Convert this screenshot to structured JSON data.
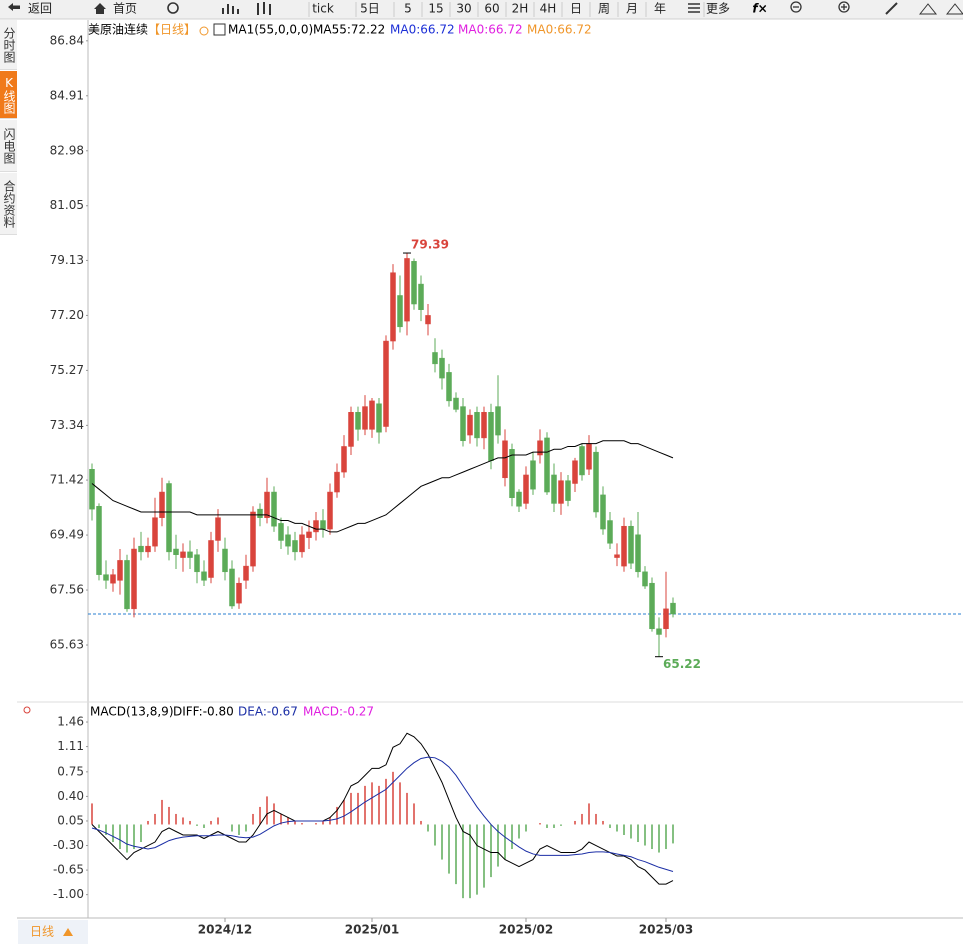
{
  "toolbar": [
    "返回",
    "首页",
    "tick",
    "5日",
    "5",
    "15",
    "30",
    "60",
    "2H",
    "4H",
    "日",
    "周",
    "月",
    "年",
    "更多"
  ],
  "sidebar": [
    "分时图",
    "K线图",
    "闪电图",
    "合约资料"
  ],
  "period_button": "日线",
  "chart_data": [
    {
      "type": "candlestick",
      "title": "美原油连续",
      "period": "【日线】",
      "indicator": "MA1(55,0,0,0)",
      "up_color": "#d9443c",
      "down_color": "#5cab58",
      "legend_extra": [
        {
          "label": "MA0:66.72",
          "color": "#1c2fd6"
        },
        {
          "label": "MA0:66.72",
          "color": "#e020e0"
        },
        {
          "label": "MA0:66.72",
          "color": "#f0962a"
        }
      ],
      "open": [
        71.8,
        70.5,
        68.1,
        67.8,
        67.9,
        68.6,
        66.9,
        69.1,
        68.9,
        69.1,
        70.1,
        71.3,
        69.0,
        68.7,
        68.9,
        68.8,
        68.2,
        68.0,
        69.3,
        69.0,
        68.3,
        67.1,
        67.9,
        68.4,
        70.4,
        70.1,
        71.0,
        69.9,
        69.5,
        69.3,
        68.9,
        69.4,
        69.6,
        70.0,
        69.7,
        71.0,
        71.7,
        72.6,
        73.8,
        73.2,
        73.2,
        74.1,
        73.3,
        76.3,
        77.9,
        77.0,
        79.1,
        78.3,
        76.9,
        75.9,
        75.7,
        75.2,
        74.3,
        74.0,
        73.0,
        73.8,
        72.9,
        73.8,
        74.0,
        71.5,
        72.5,
        71.0,
        70.6,
        72.1,
        72.3,
        72.9,
        71.6,
        70.6,
        71.4,
        71.3,
        72.6,
        71.8,
        72.4,
        70.9,
        70.0,
        68.7,
        68.4,
        69.8,
        69.5,
        68.2,
        67.8,
        66.2,
        66.2,
        67.1
      ],
      "high": [
        72.0,
        70.6,
        68.6,
        68.3,
        69.0,
        68.8,
        69.4,
        69.6,
        69.4,
        70.8,
        71.5,
        71.4,
        69.5,
        69.2,
        69.3,
        69.0,
        68.6,
        69.6,
        70.4,
        69.4,
        68.6,
        68.0,
        68.8,
        70.5,
        70.6,
        71.5,
        71.2,
        70.1,
        69.8,
        69.6,
        69.8,
        70.0,
        70.3,
        70.4,
        71.3,
        72.0,
        73.0,
        74.0,
        74.0,
        74.4,
        74.3,
        74.3,
        76.5,
        79.0,
        78.6,
        79.39,
        79.2,
        78.6,
        77.6,
        76.4,
        76.0,
        75.5,
        74.5,
        74.3,
        73.9,
        74.0,
        74.0,
        74.1,
        75.1,
        73.2,
        72.7,
        71.1,
        71.9,
        72.4,
        73.2,
        73.1,
        72.0,
        71.7,
        71.6,
        72.2,
        72.7,
        73.0,
        72.6,
        71.2,
        70.3,
        69.2,
        70.1,
        70.0,
        70.3,
        68.4,
        68.0,
        66.6,
        68.2,
        67.3
      ],
      "low": [
        70.0,
        67.9,
        67.6,
        67.5,
        67.4,
        66.8,
        66.6,
        68.6,
        68.7,
        68.9,
        69.8,
        68.6,
        68.3,
        68.2,
        68.3,
        67.8,
        67.7,
        67.8,
        68.9,
        67.9,
        66.9,
        66.9,
        67.6,
        68.2,
        69.8,
        69.9,
        69.6,
        69.0,
        68.8,
        68.6,
        68.7,
        69.0,
        69.3,
        69.4,
        69.5,
        70.8,
        71.5,
        72.3,
        72.8,
        73.0,
        72.9,
        72.7,
        73.1,
        76.0,
        76.6,
        76.5,
        77.4,
        77.0,
        76.5,
        75.2,
        74.6,
        74.0,
        73.8,
        72.6,
        72.7,
        72.6,
        72.5,
        71.8,
        72.7,
        71.2,
        70.5,
        70.3,
        70.4,
        70.9,
        72.0,
        70.9,
        70.3,
        70.2,
        70.5,
        71.0,
        71.4,
        71.6,
        70.1,
        69.5,
        69.0,
        68.4,
        68.2,
        68.3,
        68.0,
        67.6,
        66.1,
        65.22,
        65.9,
        66.6
      ],
      "close": [
        70.4,
        68.1,
        67.9,
        68.1,
        68.6,
        66.9,
        69.0,
        68.9,
        69.1,
        70.1,
        71.0,
        68.9,
        68.8,
        68.9,
        68.7,
        68.2,
        67.9,
        69.3,
        70.1,
        68.2,
        67.0,
        67.8,
        68.4,
        70.3,
        70.1,
        71.0,
        69.8,
        69.3,
        69.1,
        68.9,
        69.5,
        69.6,
        70.0,
        69.7,
        71.0,
        71.7,
        72.6,
        73.8,
        73.2,
        74.0,
        74.2,
        73.1,
        76.3,
        78.7,
        76.8,
        79.2,
        77.6,
        77.4,
        77.2,
        75.5,
        75.0,
        74.2,
        73.9,
        72.8,
        73.7,
        72.9,
        73.8,
        72.1,
        73.0,
        72.8,
        70.8,
        70.5,
        71.6,
        71.1,
        72.8,
        71.0,
        70.6,
        71.4,
        70.7,
        72.1,
        71.6,
        72.7,
        70.3,
        69.7,
        69.2,
        68.8,
        69.8,
        68.5,
        68.2,
        67.7,
        66.2,
        66.0,
        66.9,
        66.72
      ],
      "series": [
        {
          "name": "MA55:72.22",
          "color": "#000000",
          "values": [
            71.3,
            71.1,
            70.9,
            70.7,
            70.6,
            70.5,
            70.4,
            70.3,
            70.3,
            70.3,
            70.3,
            70.3,
            70.3,
            70.3,
            70.3,
            70.2,
            70.2,
            70.2,
            70.2,
            70.2,
            70.2,
            70.2,
            70.2,
            70.2,
            70.2,
            70.2,
            70.1,
            70.0,
            70.0,
            69.9,
            69.9,
            69.8,
            69.7,
            69.7,
            69.6,
            69.6,
            69.7,
            69.8,
            69.9,
            69.9,
            70.0,
            70.1,
            70.2,
            70.4,
            70.6,
            70.8,
            71.0,
            71.2,
            71.3,
            71.4,
            71.5,
            71.5,
            71.6,
            71.7,
            71.8,
            71.9,
            72.0,
            72.1,
            72.2,
            72.2,
            72.3,
            72.3,
            72.3,
            72.4,
            72.4,
            72.4,
            72.5,
            72.5,
            72.6,
            72.6,
            72.7,
            72.7,
            72.7,
            72.8,
            72.8,
            72.8,
            72.8,
            72.7,
            72.7,
            72.6,
            72.5,
            72.4,
            72.3,
            72.2
          ]
        }
      ],
      "high_label_color": "#d9443c",
      "low_label_color": "#5cab58",
      "reference_line": 66.72,
      "reference_color": "#2a7fd0",
      "ylim": [
        63.7,
        87.5
      ],
      "yticks": [
        86.84,
        84.91,
        82.98,
        81.05,
        79.13,
        {
          "value": 77.2,
          "label": "77.20"
        },
        75.27,
        73.34,
        71.42,
        69.49,
        67.56,
        65.63
      ],
      "xticks": [
        {
          "value": 19,
          "label": "2024/12"
        },
        {
          "value": 40,
          "label": "2025/01"
        },
        {
          "value": 62,
          "label": "2025/02"
        },
        {
          "value": 82,
          "label": "2025/03"
        }
      ]
    },
    {
      "type": "macd",
      "title": "MACD(13,8,9)",
      "series": [
        {
          "name": "DIFF:-0.80",
          "color": "#000000",
          "values": [
            0.0,
            -0.1,
            -0.2,
            -0.3,
            -0.4,
            -0.5,
            -0.4,
            -0.35,
            -0.3,
            -0.25,
            -0.1,
            -0.05,
            -0.1,
            -0.15,
            -0.15,
            -0.15,
            -0.2,
            -0.15,
            -0.1,
            -0.15,
            -0.2,
            -0.25,
            -0.25,
            -0.15,
            0.0,
            0.15,
            0.2,
            0.15,
            0.1,
            0.05,
            0.05,
            0.05,
            0.05,
            0.05,
            0.1,
            0.2,
            0.35,
            0.55,
            0.6,
            0.7,
            0.8,
            0.8,
            0.85,
            1.1,
            1.15,
            1.3,
            1.25,
            1.15,
            1.0,
            0.8,
            0.6,
            0.35,
            0.1,
            -0.1,
            -0.15,
            -0.3,
            -0.35,
            -0.4,
            -0.4,
            -0.5,
            -0.55,
            -0.6,
            -0.55,
            -0.5,
            -0.35,
            -0.3,
            -0.35,
            -0.4,
            -0.4,
            -0.4,
            -0.35,
            -0.25,
            -0.3,
            -0.35,
            -0.4,
            -0.45,
            -0.45,
            -0.5,
            -0.6,
            -0.65,
            -0.75,
            -0.85,
            -0.85,
            -0.8
          ]
        },
        {
          "name": "DEA:-0.67",
          "color": "#1c2fa6",
          "values": [
            -0.05,
            -0.08,
            -0.12,
            -0.17,
            -0.22,
            -0.28,
            -0.31,
            -0.33,
            -0.35,
            -0.33,
            -0.28,
            -0.23,
            -0.2,
            -0.18,
            -0.17,
            -0.16,
            -0.16,
            -0.16,
            -0.15,
            -0.15,
            -0.16,
            -0.18,
            -0.19,
            -0.18,
            -0.14,
            -0.08,
            -0.02,
            0.02,
            0.04,
            0.05,
            0.05,
            0.05,
            0.05,
            0.05,
            0.06,
            0.08,
            0.12,
            0.18,
            0.25,
            0.32,
            0.38,
            0.44,
            0.5,
            0.6,
            0.7,
            0.8,
            0.88,
            0.94,
            0.96,
            0.95,
            0.9,
            0.82,
            0.7,
            0.55,
            0.4,
            0.25,
            0.12,
            0.0,
            -0.1,
            -0.18,
            -0.25,
            -0.32,
            -0.38,
            -0.42,
            -0.44,
            -0.44,
            -0.44,
            -0.44,
            -0.44,
            -0.43,
            -0.42,
            -0.4,
            -0.39,
            -0.39,
            -0.4,
            -0.42,
            -0.44,
            -0.46,
            -0.5,
            -0.53,
            -0.57,
            -0.61,
            -0.64,
            -0.67
          ]
        }
      ],
      "histogram": {
        "name": "MACD:-0.27",
        "color": "#e020e0",
        "up_color": "#d9443c",
        "down_color": "#5cab58",
        "values": [
          0.3,
          -0.05,
          -0.15,
          -0.25,
          -0.35,
          -0.4,
          -0.35,
          -0.25,
          0.05,
          0.15,
          0.35,
          0.25,
          0.15,
          0.1,
          0.05,
          -0.02,
          -0.05,
          0.05,
          0.1,
          0.0,
          -0.1,
          -0.15,
          -0.1,
          0.15,
          0.25,
          0.4,
          0.3,
          0.15,
          0.1,
          0.05,
          0.02,
          0.0,
          0.02,
          0.05,
          0.1,
          0.25,
          0.35,
          0.45,
          0.45,
          0.55,
          0.6,
          0.55,
          0.65,
          0.75,
          0.6,
          0.45,
          0.3,
          0.05,
          -0.1,
          -0.3,
          -0.5,
          -0.7,
          -0.85,
          -1.05,
          -1.05,
          -1.0,
          -0.9,
          -0.75,
          -0.6,
          -0.5,
          -0.35,
          -0.2,
          -0.1,
          0.0,
          0.02,
          -0.05,
          -0.05,
          -0.02,
          0.0,
          0.05,
          0.15,
          0.3,
          0.15,
          0.05,
          -0.05,
          -0.1,
          -0.15,
          -0.2,
          -0.25,
          -0.3,
          -0.35,
          -0.4,
          -0.35,
          -0.27
        ]
      },
      "ylim": [
        -1.29,
        1.56
      ],
      "yticks": [
        1.46,
        1.11,
        0.75,
        {
          "value": 0.4,
          "label": "0.40"
        },
        0.05,
        {
          "value": -0.3,
          "label": "-0.30"
        },
        -0.65,
        {
          "value": -1.0,
          "label": "-1.00"
        }
      ]
    }
  ]
}
